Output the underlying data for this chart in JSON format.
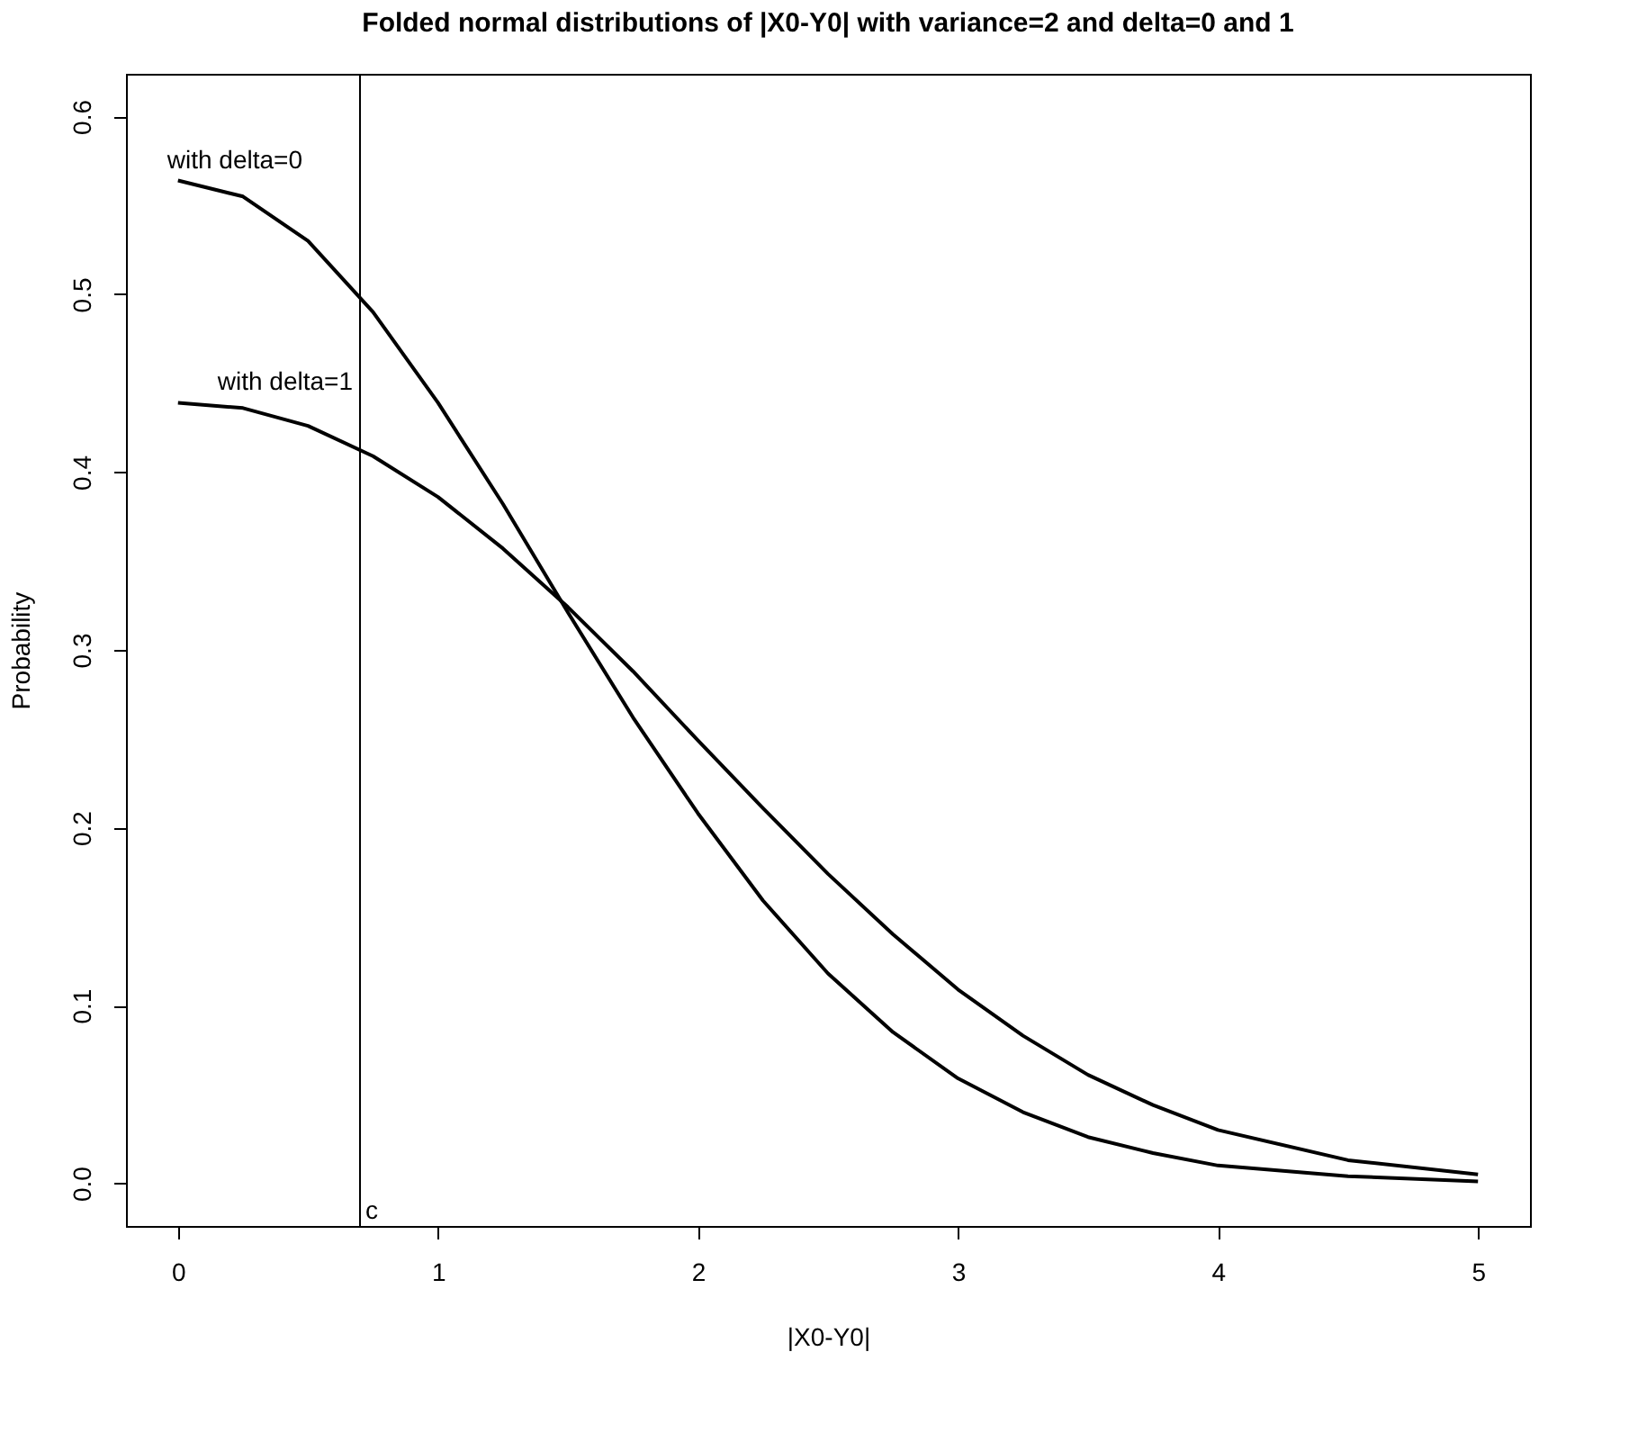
{
  "chart_data": {
    "type": "line",
    "title": "Folded normal distributions of |X0-Y0| with variance=2 and delta=0 and 1",
    "xlabel": "|X0-Y0|",
    "ylabel": "Probability",
    "x": [
      0,
      0.25,
      0.5,
      0.75,
      1,
      1.25,
      1.5,
      1.75,
      2,
      2.25,
      2.5,
      2.75,
      3,
      3.25,
      3.5,
      3.75,
      4,
      4.5,
      5
    ],
    "series": [
      {
        "name": "with delta=0",
        "color": "#000000",
        "values": [
          0.564,
          0.555,
          0.53,
          0.49,
          0.439,
          0.382,
          0.321,
          0.262,
          0.208,
          0.159,
          0.118,
          0.085,
          0.059,
          0.04,
          0.026,
          0.017,
          0.01,
          0.004,
          0.001
        ]
      },
      {
        "name": "with delta=1",
        "color": "#000000",
        "values": [
          0.439,
          0.436,
          0.426,
          0.409,
          0.386,
          0.357,
          0.324,
          0.288,
          0.249,
          0.211,
          0.174,
          0.14,
          0.109,
          0.083,
          0.061,
          0.044,
          0.03,
          0.013,
          0.005
        ]
      }
    ],
    "xlim": [
      -0.2,
      5.2
    ],
    "ylim": [
      -0.024,
      0.624
    ],
    "xticks": [
      0,
      1,
      2,
      3,
      4,
      5
    ],
    "yticks": [
      {
        "value": 0,
        "label": "0.0"
      },
      0.1,
      0.2,
      0.3,
      0.4,
      0.5,
      0.6
    ],
    "ref_lines": [
      {
        "axis": "x",
        "value": 0.7,
        "label": "c",
        "color": "#000000"
      }
    ],
    "grid": false,
    "legend": false,
    "marker": "none",
    "line_style": "solid"
  }
}
